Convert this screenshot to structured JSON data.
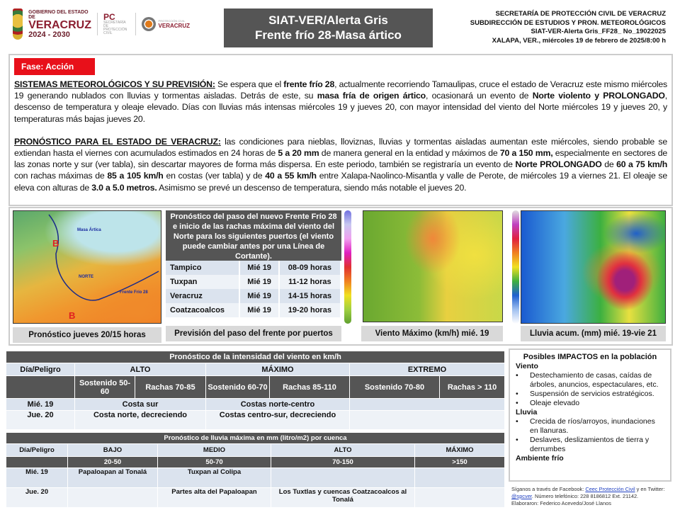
{
  "header": {
    "logo_gov": {
      "line1": "GOBIERNO DEL ESTADO DE",
      "line2": "VERACRUZ",
      "line3": "2024 - 2030"
    },
    "logo_pc": {
      "title": "PC",
      "subtitle": "SECRETARÍA DE PROTECCIÓN CIVIL"
    },
    "logo_pcv": {
      "small": "PROTECCIÓN CIVIL",
      "name": "VERACRUZ"
    },
    "title_line1": "SIAT-VER/Alerta Gris",
    "title_line2": "Frente frío 28-Masa ártico",
    "right": [
      "SECRETARÍA DE PROTECCIÓN CIVIL DE VERACRUZ",
      "SUBDIRECCIÓN DE ESTUDIOS Y PRON. METEOROLÓGICOS",
      "SIAT-VER-Alerta Gris_FF28_ No_19022025",
      "XALAPA, VER., miércoles 19 de febrero de 2025/8:00 h"
    ]
  },
  "phase": {
    "label": "Fase: Acción",
    "color": "#e8101a"
  },
  "paragraphs": [
    [
      {
        "t": "SISTEMAS METEOROLÓGICOS Y SU PREVISIÓN:",
        "s": "h"
      },
      {
        "t": " Se espera que el "
      },
      {
        "t": "frente frío 28",
        "s": "b"
      },
      {
        "t": ", actualmente recorriendo Tamaulipas, cruce el estado de Veracruz este mismo miércoles 19 generando nublados con lluvias y tormentas aisladas. Detrás de este, su "
      },
      {
        "t": "masa fría de origen ártico",
        "s": "b"
      },
      {
        "t": ", ocasionará un evento de "
      },
      {
        "t": "Norte violento y PROLONGADO",
        "s": "b"
      },
      {
        "t": ", descenso de temperatura y oleaje elevado. Días con lluvias más intensas miércoles 19 y jueves 20, con mayor intensidad del viento del Norte miércoles 19 y jueves 20, y temperaturas más bajas jueves 20."
      }
    ],
    [
      {
        "t": "PRONÓSTICO PARA EL ESTADO DE VERACRUZ:",
        "s": "h"
      },
      {
        "t": " las condiciones para nieblas, lloviznas, lluvias y tormentas aisladas aumentan este miércoles, siendo probable se extiendan hasta el viernes con acumulados estimados en 24 horas de "
      },
      {
        "t": "5 a 20 mm",
        "s": "b"
      },
      {
        "t": " de manera general en la entidad y máximos de "
      },
      {
        "t": "70 a 150 mm,",
        "s": "b"
      },
      {
        "t": " especialmente en sectores de las zonas norte y sur (ver tabla), sin descartar mayores de forma más dispersa. En este periodo, también se registraría un evento de "
      },
      {
        "t": "Norte PROLONGADO",
        "s": "b"
      },
      {
        "t": " de "
      },
      {
        "t": "60 a 75 km/h",
        "s": "b"
      },
      {
        "t": " con rachas máximas de "
      },
      {
        "t": "85 a 105 km/h",
        "s": "b"
      },
      {
        "t": " en costas (ver tabla) y de "
      },
      {
        "t": "40 a 55 km/h",
        "s": "b"
      },
      {
        "t": " entre Xalapa-Naolinco-Misantla y valle de Perote, de miércoles 19 a viernes 21. El oleaje se eleva con alturas de "
      },
      {
        "t": "3.0 a 5.0 metros.",
        "s": "b"
      },
      {
        "t": " Asimismo se prevé un descenso de temperatura, siendo más notable el jueves 20."
      }
    ]
  ],
  "map1": {
    "caption": "Pronóstico jueves 20/15 horas",
    "labels": {
      "arctic": "Masa Ártica",
      "norte": "NORTE",
      "front": "Frente Frío 28",
      "low": "B"
    }
  },
  "ports": {
    "header": "Pronóstico del paso del nuevo Frente Frío 28 e inicio de las rachas máxima  del viento del Norte para los siguientes puertos (el viento puede cambiar antes por una Línea de Cortante).",
    "rows": [
      [
        "Tampico",
        "Mié 19",
        "08-09 horas"
      ],
      [
        "Tuxpan",
        "Mié 19",
        "11-12 horas"
      ],
      [
        "Veracruz",
        "Mié 19",
        "14-15 horas"
      ],
      [
        "Coatzacoalcos",
        "Mié 19",
        "19-20 horas"
      ]
    ],
    "caption": "Previsión del paso del frente por puertos"
  },
  "map2": {
    "caption": "Viento Máximo (km/h) mié. 19"
  },
  "map3": {
    "caption": "Lluvia acum. (mm) mié. 19-vie 21"
  },
  "wind_table": {
    "title": "Pronóstico de la intensidad del viento en km/h",
    "header": [
      "Día/Peligro",
      "ALTO",
      "MÁXIMO",
      "EXTREMO"
    ],
    "sub": [
      "Sostenido 50-60",
      "Rachas 70-85",
      "Sostenido 60-70",
      "Rachas 85-110",
      "Sostenido 70-80",
      "Rachas > 110"
    ],
    "rows": [
      {
        "day": "Mié. 19",
        "alto": "Costa sur",
        "maximo": "Costas norte-centro",
        "extremo": ""
      },
      {
        "day": "Jue. 20",
        "alto": "Costa norte, decreciendo",
        "maximo": "Costas centro-sur, decreciendo",
        "extremo": ""
      }
    ]
  },
  "rain_table": {
    "title": "Pronóstico de lluvia máxima en mm (litro/m2) por cuenca",
    "header": [
      "Día/Peligro",
      "BAJO",
      "MEDIO",
      "ALTO",
      "MÁXIMO"
    ],
    "sub": [
      "",
      "20-50",
      "50-70",
      "70-150",
      ">150"
    ],
    "rows": [
      [
        "Mié. 19",
        "Papaloapan al Tonalá",
        "Tuxpan  al Colipa",
        "",
        ""
      ],
      [
        "Jue. 20",
        "",
        "Partes alta del Papaloapan",
        "Los Tuxtlas y cuencas  Coatzacoalcos al Tonalá",
        ""
      ]
    ]
  },
  "impacts": {
    "title": "Posibles IMPACTOS  en la población",
    "wind_label": "Viento",
    "wind": [
      "Destechamiento de casas, caídas de árboles, anuncios, espectaculares, etc.",
      "Suspensión de servicios estratégicos.",
      "Oleaje elevado"
    ],
    "rain_label": "Lluvia",
    "rain": [
      "Crecida de ríos/arroyos, inundaciones en llanuras.",
      "Deslaves, deslizamientos de tierra y derrumbes"
    ],
    "cold_label": "Ambiente frío"
  },
  "footer": {
    "p1": "Síganos a través de Facebook: ",
    "fb": "Ceec Protección Civil",
    "p2": " y en Twitter: ",
    "tw": "@spcver",
    "p3": ". Número telefónico: 228 8186812 Ext. 21142.",
    "credits": "Elaboraron: Federico Acevedo/José Llanos"
  }
}
